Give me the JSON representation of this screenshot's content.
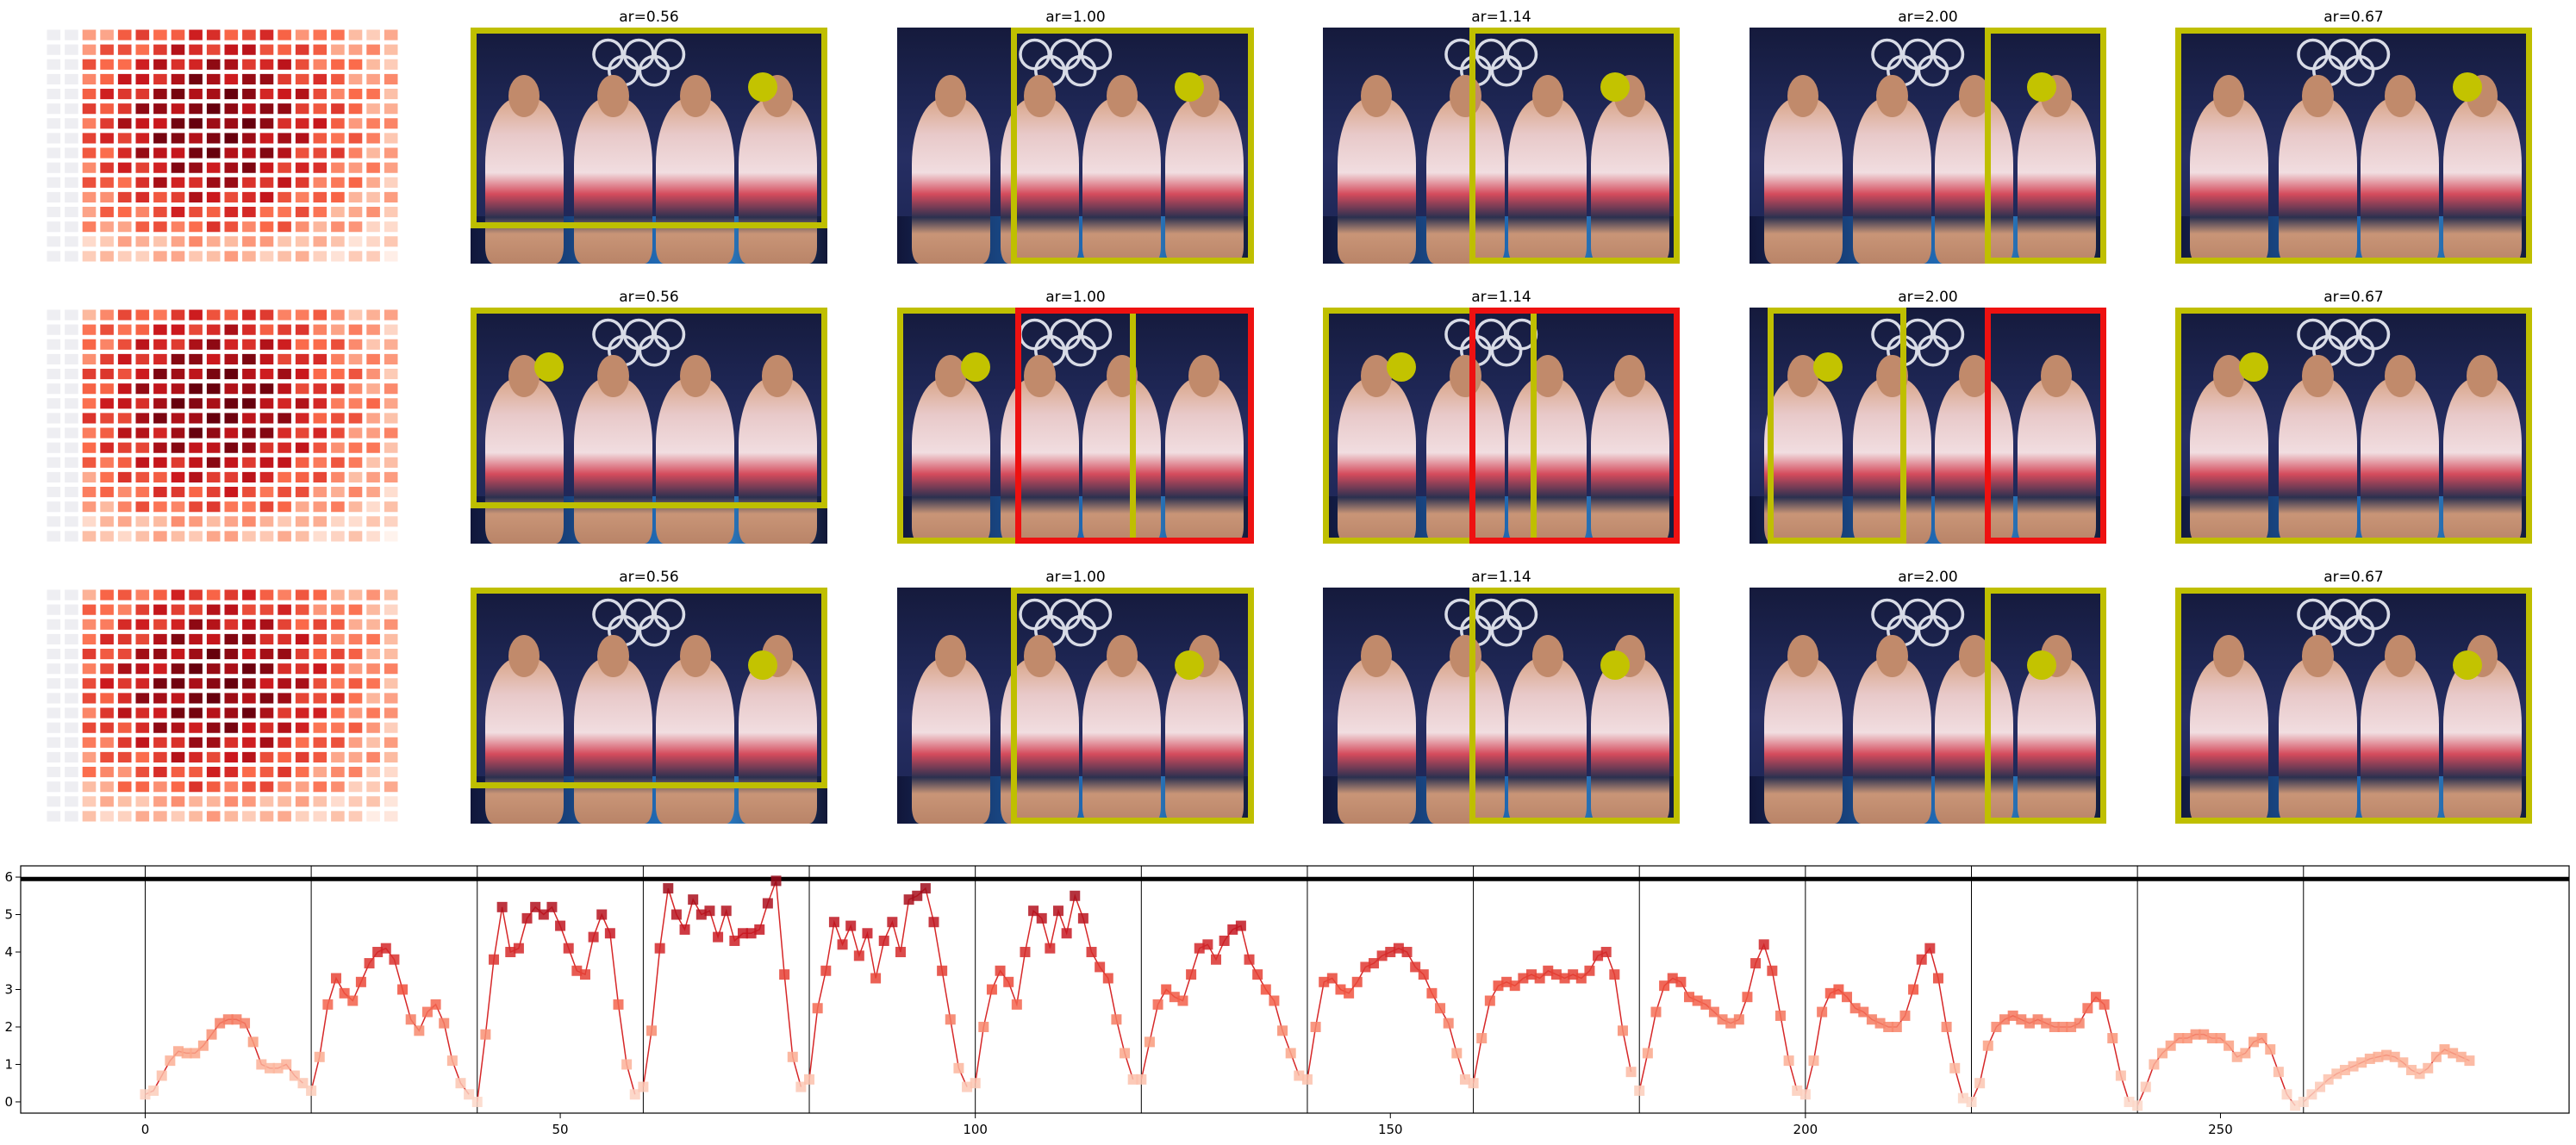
{
  "panel_titles": [
    "ar=0.56",
    "ar=1.00",
    "ar=1.14",
    "ar=2.00",
    "ar=0.67"
  ],
  "colors": {
    "crop_box": "#bfbf00",
    "crop_box_alt": "#ee1111",
    "face_dot": "#c3c300",
    "line": "#d62728"
  },
  "rows": [
    {
      "panels": [
        {
          "title": "ar=0.56",
          "boxes": [
            "yellow"
          ]
        },
        {
          "title": "ar=1.00",
          "boxes": [
            "yellow"
          ]
        },
        {
          "title": "ar=1.14",
          "boxes": [
            "yellow"
          ]
        },
        {
          "title": "ar=2.00",
          "boxes": [
            "yellow"
          ]
        },
        {
          "title": "ar=0.67",
          "boxes": [
            "yellow"
          ]
        }
      ]
    },
    {
      "panels": [
        {
          "title": "ar=0.56",
          "boxes": [
            "yellow"
          ]
        },
        {
          "title": "ar=1.00",
          "boxes": [
            "yellow",
            "red"
          ]
        },
        {
          "title": "ar=1.14",
          "boxes": [
            "yellow",
            "red"
          ]
        },
        {
          "title": "ar=2.00",
          "boxes": [
            "yellow",
            "red"
          ]
        },
        {
          "title": "ar=0.67",
          "boxes": [
            "yellow"
          ]
        }
      ]
    },
    {
      "panels": [
        {
          "title": "ar=0.56",
          "boxes": [
            "yellow"
          ]
        },
        {
          "title": "ar=1.00",
          "boxes": [
            "yellow"
          ]
        },
        {
          "title": "ar=1.14",
          "boxes": [
            "yellow"
          ]
        },
        {
          "title": "ar=2.00",
          "boxes": [
            "yellow"
          ]
        },
        {
          "title": "ar=0.67",
          "boxes": [
            "yellow"
          ]
        }
      ]
    }
  ],
  "chart_data": {
    "type": "line",
    "title": "",
    "xlabel": "",
    "ylabel": "",
    "xlim": [
      -15,
      292
    ],
    "ylim": [
      -0.3,
      6.3
    ],
    "xticks": [
      0,
      50,
      100,
      150,
      200,
      250
    ],
    "yticks": [
      0,
      1,
      2,
      3,
      4,
      5,
      6
    ],
    "hline": 5.95,
    "vlines": [
      0,
      20,
      40,
      60,
      80,
      100,
      120,
      140,
      160,
      180,
      200,
      220,
      240,
      260
    ],
    "grid": false,
    "segments": [
      {
        "x_start": 0,
        "values": [
          0.2,
          0.3,
          0.7,
          1.1,
          1.35,
          1.3,
          1.3,
          1.5,
          1.8,
          2.1,
          2.2,
          2.2,
          2.1,
          1.6,
          1.0,
          0.9,
          0.9,
          1.0,
          0.7,
          0.5
        ]
      },
      {
        "x_start": 20,
        "values": [
          0.3,
          1.2,
          2.6,
          3.3,
          2.9,
          2.7,
          3.2,
          3.7,
          4.0,
          4.1,
          3.8,
          3.0,
          2.2,
          1.9,
          2.4,
          2.6,
          2.1,
          1.1,
          0.5,
          0.2
        ]
      },
      {
        "x_start": 40,
        "values": [
          0.0,
          1.8,
          3.8,
          5.2,
          4.0,
          4.1,
          4.9,
          5.2,
          5.0,
          5.2,
          4.7,
          4.1,
          3.5,
          3.4,
          4.4,
          5.0,
          4.5,
          2.6,
          1.0,
          0.2
        ]
      },
      {
        "x_start": 60,
        "values": [
          0.4,
          1.9,
          4.1,
          5.7,
          5.0,
          4.6,
          5.4,
          5.0,
          5.1,
          4.4,
          5.1,
          4.3,
          4.5,
          4.5,
          4.6,
          5.3,
          5.9,
          3.4,
          1.2,
          0.4
        ]
      },
      {
        "x_start": 80,
        "values": [
          0.6,
          2.5,
          3.5,
          4.8,
          4.2,
          4.7,
          3.9,
          4.5,
          3.3,
          4.3,
          4.8,
          4.0,
          5.4,
          5.5,
          5.7,
          4.8,
          3.5,
          2.2,
          0.9,
          0.4
        ]
      },
      {
        "x_start": 100,
        "values": [
          0.5,
          2.0,
          3.0,
          3.5,
          3.2,
          2.6,
          4.0,
          5.1,
          4.9,
          4.1,
          5.1,
          4.5,
          5.5,
          4.9,
          4.0,
          3.6,
          3.3,
          2.2,
          1.3,
          0.6
        ]
      },
      {
        "x_start": 120,
        "values": [
          0.6,
          1.6,
          2.6,
          3.0,
          2.8,
          2.7,
          3.4,
          4.1,
          4.2,
          3.8,
          4.3,
          4.6,
          4.7,
          3.8,
          3.4,
          3.0,
          2.7,
          1.9,
          1.3,
          0.7
        ]
      },
      {
        "x_start": 140,
        "values": [
          0.6,
          2.0,
          3.2,
          3.3,
          3.0,
          2.9,
          3.2,
          3.6,
          3.7,
          3.9,
          4.0,
          4.1,
          4.0,
          3.6,
          3.4,
          2.9,
          2.5,
          2.1,
          1.3,
          0.6
        ]
      },
      {
        "x_start": 160,
        "values": [
          0.5,
          1.7,
          2.7,
          3.1,
          3.2,
          3.1,
          3.3,
          3.4,
          3.3,
          3.5,
          3.4,
          3.3,
          3.4,
          3.3,
          3.5,
          3.9,
          4.0,
          3.4,
          1.9,
          0.8
        ]
      },
      {
        "x_start": 180,
        "values": [
          0.3,
          1.3,
          2.4,
          3.1,
          3.3,
          3.2,
          2.8,
          2.7,
          2.6,
          2.4,
          2.2,
          2.1,
          2.2,
          2.8,
          3.7,
          4.2,
          3.5,
          2.3,
          1.1,
          0.3
        ]
      },
      {
        "x_start": 200,
        "values": [
          0.2,
          1.1,
          2.4,
          2.9,
          3.0,
          2.8,
          2.5,
          2.4,
          2.2,
          2.1,
          2.0,
          2.0,
          2.3,
          3.0,
          3.8,
          4.1,
          3.3,
          2.0,
          0.9,
          0.1
        ]
      },
      {
        "x_start": 220,
        "values": [
          0.0,
          0.5,
          1.5,
          2.0,
          2.2,
          2.3,
          2.2,
          2.1,
          2.2,
          2.1,
          2.0,
          2.0,
          2.0,
          2.1,
          2.5,
          2.8,
          2.6,
          1.7,
          0.7,
          0.0
        ]
      },
      {
        "x_start": 240,
        "values": [
          -0.1,
          0.4,
          1.0,
          1.3,
          1.5,
          1.7,
          1.7,
          1.8,
          1.8,
          1.7,
          1.7,
          1.5,
          1.2,
          1.3,
          1.6,
          1.7,
          1.4,
          0.8,
          0.2,
          -0.1
        ]
      },
      {
        "x_start": 260,
        "values": [
          0.0,
          0.2,
          0.4,
          0.6,
          0.75,
          0.85,
          0.95,
          1.05,
          1.15,
          1.2,
          1.25,
          1.2,
          1.05,
          0.85,
          0.75,
          0.9,
          1.2,
          1.4,
          1.3,
          1.2,
          1.1
        ]
      }
    ]
  }
}
